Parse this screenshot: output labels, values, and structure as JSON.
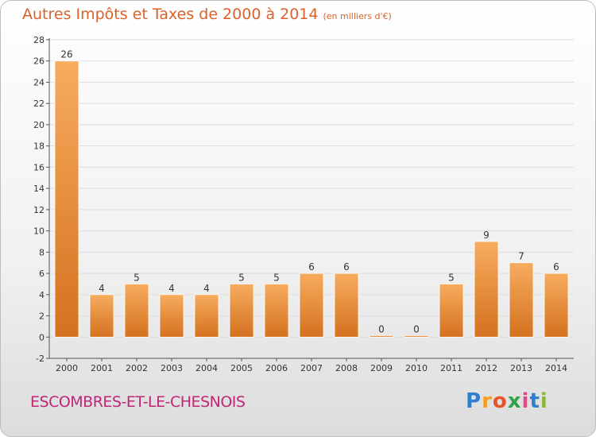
{
  "chart_data": {
    "type": "bar",
    "title": "Autres Impôts et Taxes de 2000 à 2014",
    "subtitle": "(en milliers d'€)",
    "categories": [
      "2000",
      "2001",
      "2002",
      "2003",
      "2004",
      "2005",
      "2006",
      "2007",
      "2008",
      "2009",
      "2010",
      "2011",
      "2012",
      "2013",
      "2014"
    ],
    "values": [
      26,
      4,
      5,
      4,
      4,
      5,
      5,
      6,
      6,
      0,
      0,
      5,
      9,
      7,
      6
    ],
    "ylim": [
      -2,
      28
    ],
    "yticks": [
      -2,
      0,
      2,
      4,
      6,
      8,
      10,
      12,
      14,
      16,
      18,
      20,
      22,
      24,
      26,
      28
    ],
    "grid": true,
    "bar_color": "#f08a2c",
    "bar_highlight": "#f7ac5e",
    "bar_shadow": "#d4711f"
  },
  "commune": "ESCOMBRES-ET-LE-CHESNOIS",
  "brand": {
    "letters": [
      "P",
      "r",
      "o",
      "x",
      "i",
      "t",
      "i"
    ],
    "colors": [
      "#2f7fd0",
      "#f0a020",
      "#e8532a",
      "#2fa34a",
      "#e04a8a",
      "#2f7fd0",
      "#8bb83a"
    ]
  },
  "colors": {
    "title": "#d9622a",
    "commune": "#c02576"
  }
}
